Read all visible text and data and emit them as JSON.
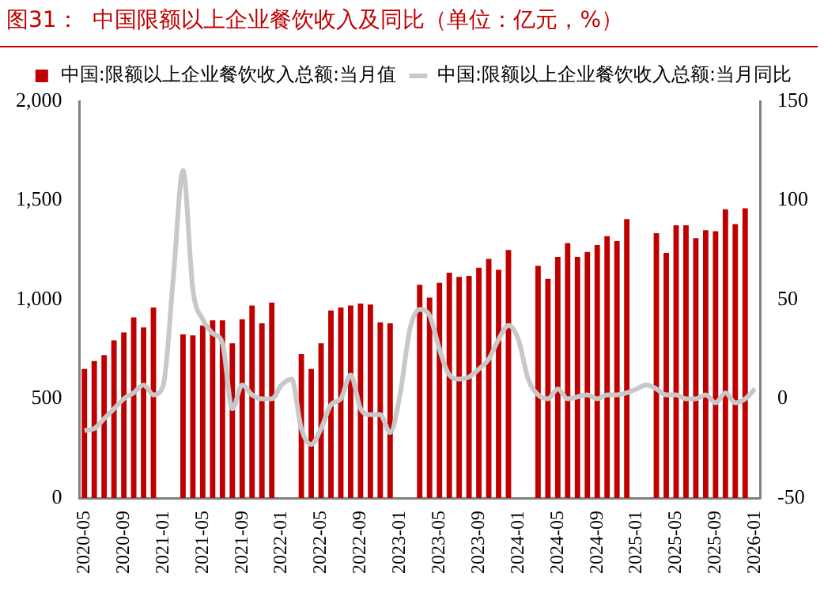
{
  "chart_data": {
    "type": "bar",
    "title": "图31：  中国限额以上企业餐饮收入及同比（单位：亿元，%）",
    "categories": [
      "2020-05",
      null,
      null,
      null,
      "2020-09",
      null,
      null,
      null,
      "2021-01",
      null,
      null,
      null,
      "2021-05",
      null,
      null,
      null,
      "2021-09",
      null,
      null,
      null,
      "2022-01",
      null,
      null,
      null,
      "2022-05",
      null,
      null,
      null,
      "2022-09",
      null,
      null,
      null,
      "2023-01",
      null,
      null,
      null,
      "2023-05",
      null,
      null,
      null,
      "2023-09",
      null,
      null,
      null,
      "2024-01",
      null,
      null,
      null,
      "2024-05",
      null,
      null,
      null,
      "2024-09",
      null,
      null,
      null,
      "2025-01",
      null,
      null,
      null,
      "2025-05",
      null,
      null,
      null,
      "2025-09",
      null,
      null,
      null,
      "2026-01"
    ],
    "series": [
      {
        "name": "中国:限额以上企业餐饮收入总额:当月值",
        "color": "#c00000",
        "values": [
          650,
          690,
          720,
          795,
          835,
          910,
          860,
          960,
          null,
          null,
          825,
          820,
          870,
          895,
          895,
          780,
          900,
          970,
          880,
          985,
          null,
          null,
          725,
          650,
          780,
          945,
          960,
          970,
          980,
          975,
          885,
          880,
          null,
          null,
          1075,
          1010,
          1085,
          1135,
          1115,
          1120,
          1160,
          1205,
          1150,
          1250,
          null,
          null,
          1170,
          1105,
          1215,
          1285,
          1215,
          1240,
          1275,
          1320,
          1295,
          1405,
          null,
          null,
          1335,
          1235,
          1375,
          1375,
          1310,
          1350,
          1345,
          1455,
          1380,
          1460,
          null
        ]
      },
      {
        "name": "中国:限额以上企业餐饮收入总额:当月同比",
        "type": "line",
        "axis": "y2",
        "color": "#c8c8c8",
        "values": [
          -16,
          -15,
          -10,
          -5,
          0,
          3,
          7,
          2,
          7,
          60,
          115,
          55,
          40,
          33,
          28,
          -5,
          7,
          2,
          0,
          0,
          7,
          10,
          -15,
          -23,
          -15,
          -3,
          0,
          12,
          -5,
          -8,
          -8,
          -17,
          2,
          35,
          45,
          42,
          25,
          12,
          10,
          11,
          15,
          20,
          30,
          37,
          30,
          10,
          2,
          0,
          5,
          0,
          1,
          2,
          0,
          2,
          2,
          3,
          5,
          7,
          5,
          2,
          2,
          0,
          0,
          2,
          -2,
          3,
          -2,
          0,
          5
        ]
      }
    ],
    "ylim": [
      0,
      2000
    ],
    "yticks": [
      0,
      500,
      {
        "value": 1000,
        "label": "1,000"
      },
      {
        "value": 1500,
        "label": "1,500"
      },
      {
        "value": 2000,
        "label": "2,000"
      }
    ],
    "y2lim": [
      -50,
      150
    ],
    "y2ticks": [
      -50,
      0,
      50,
      100,
      150
    ],
    "legend": "top",
    "marker": "none"
  }
}
